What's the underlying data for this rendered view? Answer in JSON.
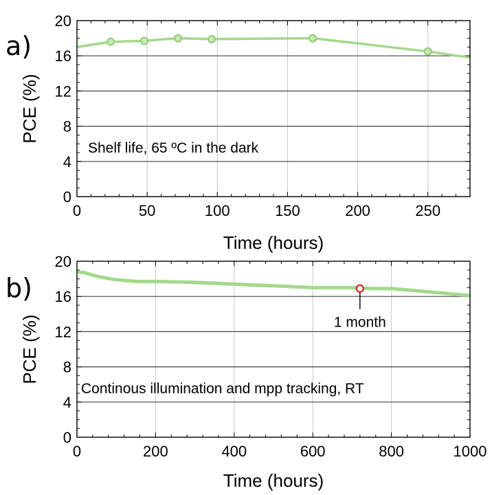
{
  "colors": {
    "series": "#a3d98b",
    "marker_fill": "#c6e9b3",
    "highlight": "#e01010"
  },
  "chart_data": [
    {
      "panel_label": "a)",
      "type": "line",
      "xlabel": "Time (hours)",
      "ylabel": "PCE (%)",
      "xlim": [
        0,
        280
      ],
      "ylim": [
        0,
        20
      ],
      "xticks": [
        0,
        50,
        100,
        150,
        200,
        250
      ],
      "yticks": [
        0,
        4,
        8,
        12,
        16,
        20
      ],
      "grid": "vertical light, horizontal dark",
      "annotation": "Shelf life, 65 ºC in the dark",
      "series": [
        {
          "x": [
            0,
            24,
            48,
            72,
            96,
            168,
            250,
            280
          ],
          "y": [
            17.0,
            17.6,
            17.7,
            18.0,
            17.9,
            18.0,
            16.5,
            15.8
          ],
          "markers": [
            24,
            48,
            72,
            96,
            168,
            250
          ]
        }
      ]
    },
    {
      "panel_label": "b)",
      "type": "line",
      "xlabel": "Time (hours)",
      "ylabel": "PCE (%)",
      "xlim": [
        0,
        1000
      ],
      "ylim": [
        0,
        20
      ],
      "xticks": [
        0,
        200,
        400,
        600,
        800,
        1000
      ],
      "yticks": [
        0,
        4,
        8,
        12,
        16,
        20
      ],
      "grid": "vertical light, horizontal dark",
      "annotation": "Continous illumination and mpp tracking, RT",
      "highlight": {
        "x": 720,
        "y": 16.9,
        "label": "1 month"
      },
      "series": [
        {
          "x": [
            0,
            20,
            50,
            100,
            150,
            200,
            300,
            400,
            500,
            600,
            650,
            700,
            750,
            800,
            850,
            900,
            950,
            1000
          ],
          "y": [
            18.8,
            18.7,
            18.3,
            17.9,
            17.7,
            17.7,
            17.6,
            17.4,
            17.2,
            17.0,
            17.0,
            17.0,
            16.9,
            16.9,
            16.7,
            16.5,
            16.3,
            16.1
          ],
          "markers": []
        }
      ]
    }
  ]
}
